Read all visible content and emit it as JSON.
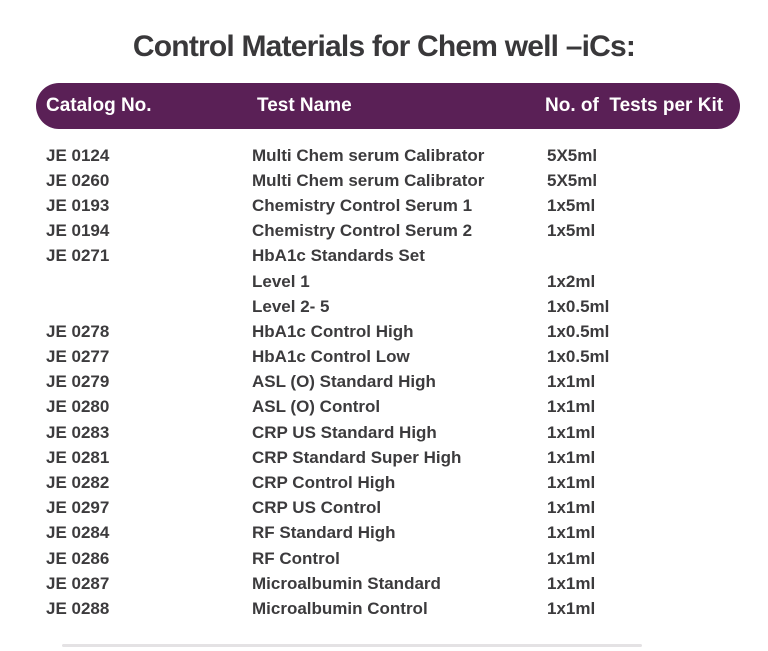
{
  "title": "Control Materials for Chem well –iCs:",
  "colors": {
    "header_bg": "#5a2056",
    "header_text": "#ffffff",
    "title_text": "#39383a",
    "row_text": "#3c3b3d"
  },
  "table": {
    "headers": {
      "catalog": "Catalog No.",
      "test_name": "Test Name",
      "tests_per_kit": "No. of  Tests per Kit"
    },
    "rows": [
      {
        "catalog": "JE 0124",
        "test": "Multi Chem serum Calibrator",
        "qty": "5X5ml"
      },
      {
        "catalog": "JE 0260",
        "test": "Multi Chem serum Calibrator",
        "qty": "5X5ml"
      },
      {
        "catalog": "JE 0193",
        "test": "Chemistry Control Serum 1",
        "qty": "1x5ml"
      },
      {
        "catalog": "JE 0194",
        "test": "Chemistry Control Serum 2",
        "qty": "1x5ml"
      },
      {
        "catalog": "JE 0271",
        "test": "HbA1c Standards Set",
        "qty": ""
      },
      {
        "catalog": "",
        "test": "Level 1",
        "qty": "1x2ml"
      },
      {
        "catalog": "",
        "test": "Level 2- 5",
        "qty": "1x0.5ml"
      },
      {
        "catalog": "JE 0278",
        "test": "HbA1c Control High",
        "qty": "1x0.5ml"
      },
      {
        "catalog": "JE 0277",
        "test": "HbA1c Control Low",
        "qty": "1x0.5ml"
      },
      {
        "catalog": "JE 0279",
        "test": "ASL (O) Standard High",
        "qty": "1x1ml"
      },
      {
        "catalog": "JE 0280",
        "test": "ASL (O) Control",
        "qty": "1x1ml"
      },
      {
        "catalog": "JE 0283",
        "test": "CRP US Standard High",
        "qty": "1x1ml"
      },
      {
        "catalog": "JE 0281",
        "test": "CRP Standard Super High",
        "qty": "1x1ml"
      },
      {
        "catalog": "JE 0282",
        "test": "CRP Control High",
        "qty": "1x1ml"
      },
      {
        "catalog": "JE 0297",
        "test": "CRP US Control",
        "qty": "1x1ml"
      },
      {
        "catalog": "JE 0284",
        "test": "RF Standard High",
        "qty": "1x1ml"
      },
      {
        "catalog": "JE 0286",
        "test": "RF Control",
        "qty": "1x1ml"
      },
      {
        "catalog": "JE 0287",
        "test": "Microalbumin Standard",
        "qty": "1x1ml"
      },
      {
        "catalog": "JE 0288",
        "test": "Microalbumin Control",
        "qty": "1x1ml"
      }
    ]
  }
}
